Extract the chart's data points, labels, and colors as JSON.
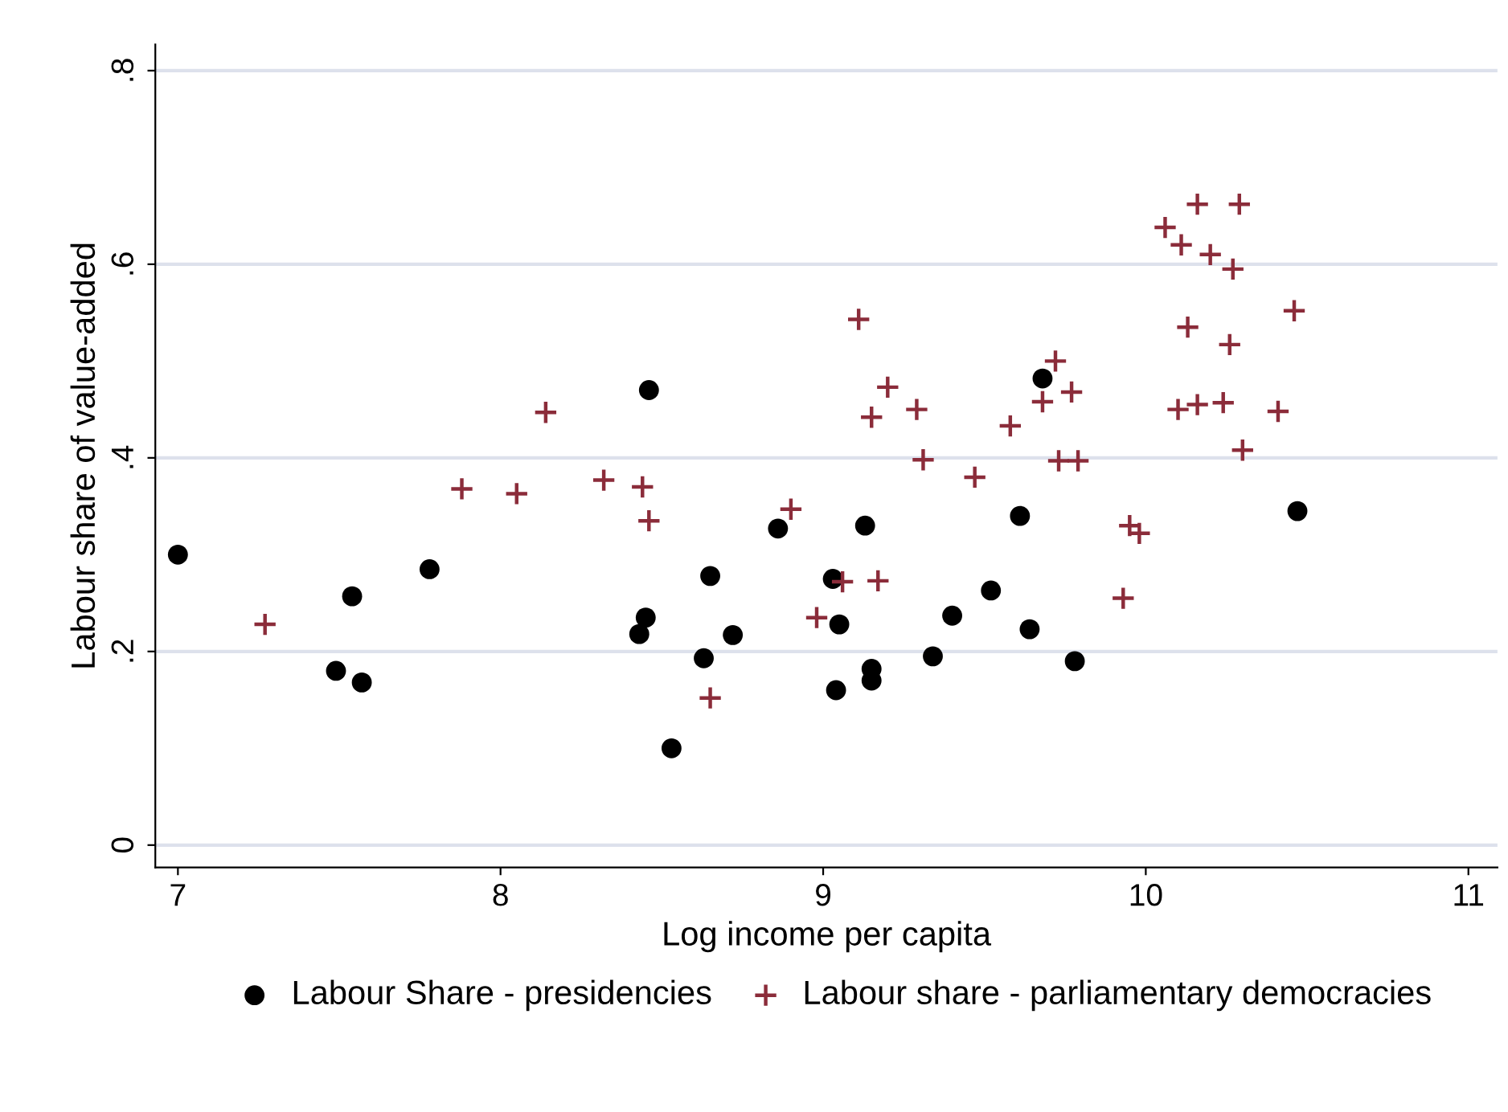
{
  "chart_data": {
    "type": "scatter",
    "xlabel": "Log income per capita",
    "ylabel": "Labour share of value-added",
    "xlim": [
      6.93,
      11.09
    ],
    "xticks": [
      7,
      8,
      9,
      10,
      11
    ],
    "ylim": [
      -0.023,
      0.827
    ],
    "yticks": [
      {
        "value": 0,
        "label": "0"
      },
      {
        "value": 0.2,
        "label": ".2"
      },
      {
        "value": 0.4,
        "label": ".4"
      },
      {
        "value": 0.6,
        "label": ".6"
      },
      {
        "value": 0.8,
        "label": ".8"
      }
    ],
    "grid": "y",
    "legend": "bottom",
    "series": [
      {
        "name": "Labour Share - presidencies",
        "color": "#000000",
        "marker": "circle",
        "x": [
          7.0,
          7.49,
          7.54,
          7.57,
          7.78,
          8.46,
          8.43,
          8.45,
          8.53,
          8.63,
          8.65,
          8.72,
          8.86,
          9.03,
          9.05,
          9.04,
          9.13,
          9.15,
          9.15,
          9.34,
          9.4,
          9.52,
          9.61,
          9.64,
          9.68,
          9.78,
          10.47
        ],
        "values": [
          0.3,
          0.18,
          0.257,
          0.168,
          0.285,
          0.47,
          0.218,
          0.235,
          0.1,
          0.193,
          0.278,
          0.217,
          0.327,
          0.275,
          0.228,
          0.16,
          0.33,
          0.182,
          0.17,
          0.195,
          0.237,
          0.263,
          0.34,
          0.223,
          0.482,
          0.19,
          0.345
        ]
      },
      {
        "name": "Labour share - parliamentary democracies",
        "color": "#8b2c3a",
        "marker": "cross",
        "x": [
          7.27,
          7.88,
          8.05,
          8.14,
          8.32,
          8.44,
          8.46,
          8.65,
          8.9,
          8.98,
          9.06,
          9.17,
          9.11,
          9.2,
          9.15,
          9.29,
          9.31,
          9.47,
          9.58,
          9.72,
          9.68,
          9.77,
          9.73,
          9.79,
          9.95,
          9.98,
          9.93,
          10.16,
          10.29,
          10.06,
          10.11,
          10.2,
          10.27,
          10.46,
          10.13,
          10.26,
          10.1,
          10.16,
          10.24,
          10.41,
          10.3
        ],
        "values": [
          0.228,
          0.368,
          0.363,
          0.447,
          0.377,
          0.37,
          0.335,
          0.152,
          0.347,
          0.235,
          0.272,
          0.273,
          0.543,
          0.473,
          0.442,
          0.45,
          0.398,
          0.38,
          0.433,
          0.5,
          0.458,
          0.468,
          0.397,
          0.397,
          0.33,
          0.322,
          0.255,
          0.662,
          0.662,
          0.638,
          0.62,
          0.61,
          0.595,
          0.552,
          0.535,
          0.517,
          0.45,
          0.455,
          0.457,
          0.448,
          0.408
        ]
      }
    ]
  }
}
